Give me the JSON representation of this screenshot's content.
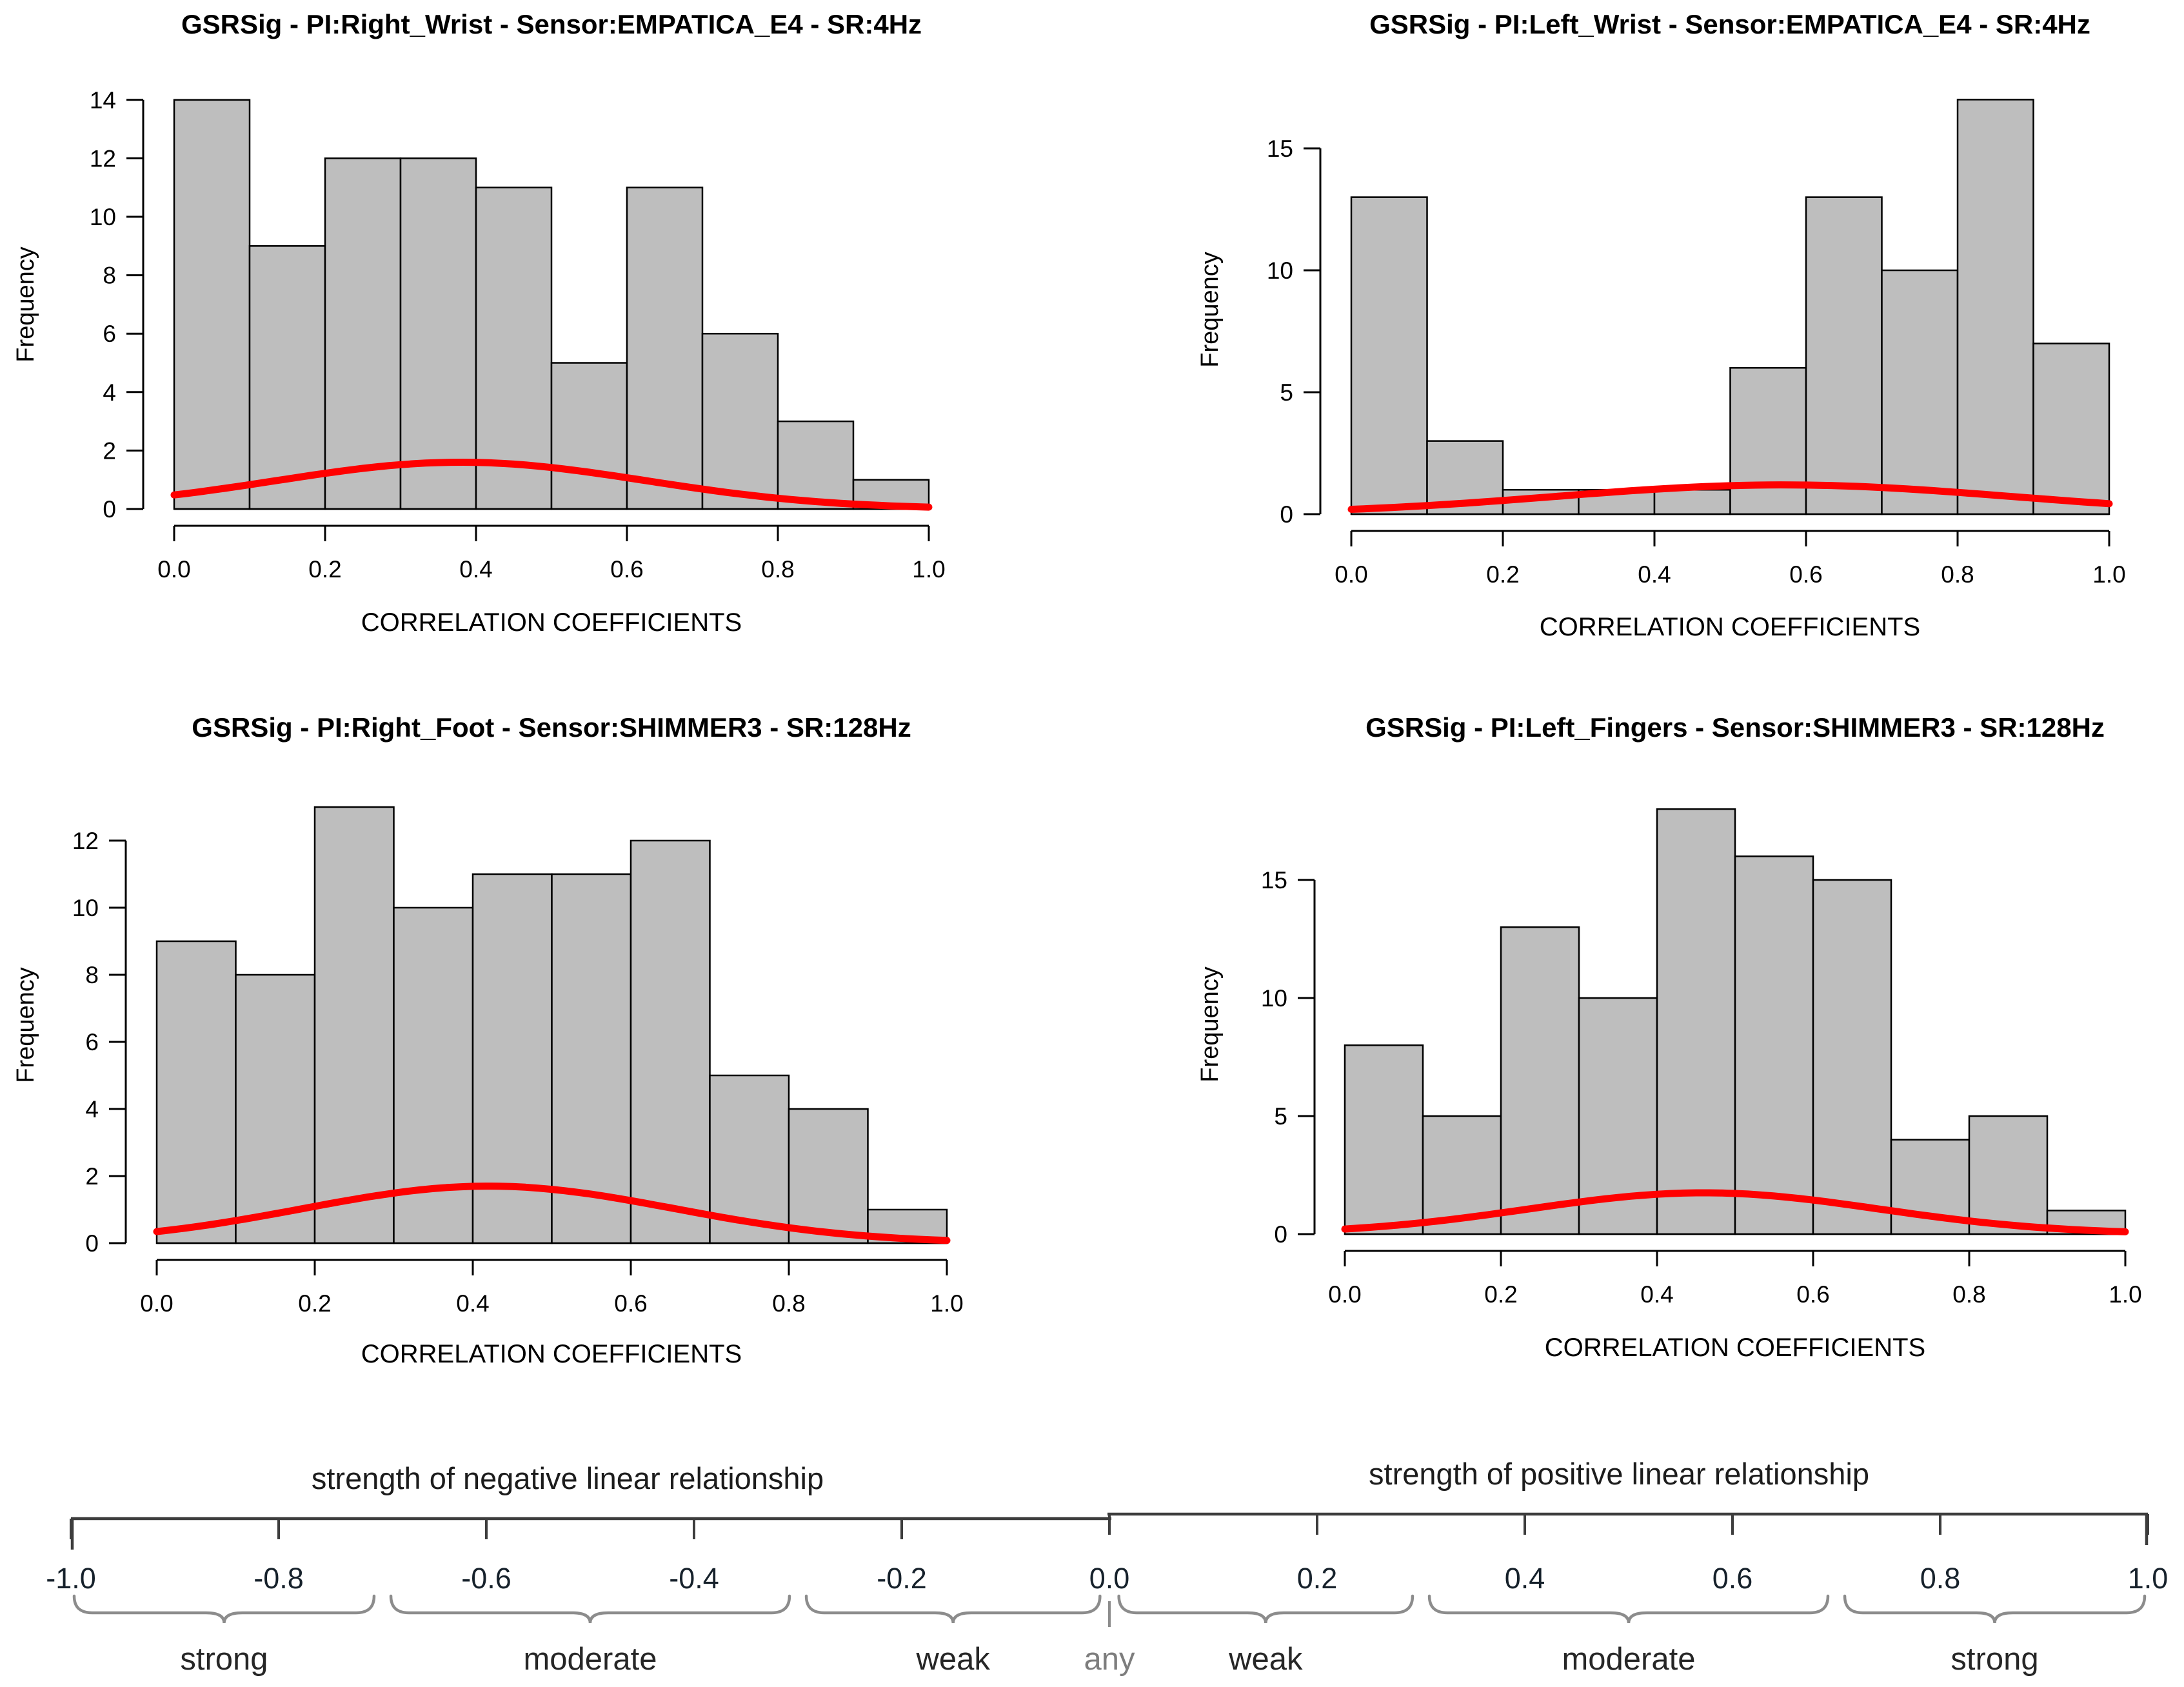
{
  "figure": {
    "background": "#ffffff",
    "bar_fill": "#bebebe",
    "bar_stroke": "#000000",
    "axis_color": "#000000",
    "curve_color": "#ff0000"
  },
  "chart_data": [
    {
      "type": "histogram",
      "position": "top-left",
      "title": "GSRSig - PI:Right_Wrist - Sensor:EMPATICA_E4 - SR:4Hz",
      "xlabel": "CORRELATION COEFFICIENTS",
      "ylabel": "Frequency",
      "xlim": [
        0.0,
        1.0
      ],
      "bin_width": 0.1,
      "bin_start": 0.0,
      "counts": [
        14,
        9,
        12,
        12,
        11,
        5,
        11,
        6,
        3,
        1
      ],
      "xticks": [
        "0.0",
        "0.2",
        "0.4",
        "0.6",
        "0.8",
        "1.0"
      ],
      "yticks": [
        0,
        2,
        4,
        6,
        8,
        10,
        12,
        14
      ],
      "grid": false,
      "legend": "none",
      "density_curve": {
        "color": "#ff0000",
        "peak_x": 0.38,
        "peak_y": 1.6,
        "sigma": 0.245
      }
    },
    {
      "type": "histogram",
      "position": "top-right",
      "title": "GSRSig - PI:Left_Wrist - Sensor:EMPATICA_E4 - SR:4Hz",
      "xlabel": "CORRELATION COEFFICIENTS",
      "ylabel": "Frequency",
      "xlim": [
        0.0,
        1.0
      ],
      "bin_width": 0.1,
      "bin_start": 0.0,
      "counts": [
        13,
        3,
        1,
        1,
        1,
        6,
        13,
        10,
        17,
        7
      ],
      "xticks": [
        "0.0",
        "0.2",
        "0.4",
        "0.6",
        "0.8",
        "1.0"
      ],
      "yticks": [
        0,
        5,
        10,
        15
      ],
      "grid": false,
      "legend": "none",
      "density_curve": {
        "color": "#ff0000",
        "peak_x": 0.57,
        "peak_y": 1.2,
        "sigma": 0.3
      }
    },
    {
      "type": "histogram",
      "position": "bottom-left",
      "title": "GSRSig - PI:Right_Foot - Sensor:SHIMMER3 - SR:128Hz",
      "xlabel": "CORRELATION COEFFICIENTS",
      "ylabel": "Frequency",
      "xlim": [
        0.0,
        1.0
      ],
      "bin_width": 0.1,
      "bin_start": 0.0,
      "counts": [
        9,
        8,
        13,
        10,
        11,
        11,
        12,
        5,
        4,
        1
      ],
      "xticks": [
        "0.0",
        "0.2",
        "0.4",
        "0.6",
        "0.8",
        "1.0"
      ],
      "yticks": [
        0,
        2,
        4,
        6,
        8,
        10,
        12
      ],
      "grid": false,
      "legend": "none",
      "density_curve": {
        "color": "#ff0000",
        "peak_x": 0.42,
        "peak_y": 1.7,
        "sigma": 0.235
      }
    },
    {
      "type": "histogram",
      "position": "bottom-right",
      "title": "GSRSig - PI:Left_Fingers - Sensor:SHIMMER3 - SR:128Hz",
      "xlabel": "CORRELATION COEFFICIENTS",
      "ylabel": "Frequency",
      "xlim": [
        0.0,
        1.0
      ],
      "bin_width": 0.1,
      "bin_start": 0.0,
      "counts": [
        8,
        5,
        13,
        10,
        18,
        16,
        15,
        4,
        5,
        1
      ],
      "xticks": [
        "0.0",
        "0.2",
        "0.4",
        "0.6",
        "0.8",
        "1.0"
      ],
      "yticks": [
        0,
        5,
        10,
        15
      ],
      "grid": false,
      "legend": "none",
      "density_curve": {
        "color": "#ff0000",
        "peak_x": 0.46,
        "peak_y": 1.75,
        "sigma": 0.225
      }
    }
  ],
  "strength_scale": {
    "left_heading": "strength of negative linear relationship",
    "right_heading": "strength of positive linear relationship",
    "axis_range": [
      -1.0,
      1.0
    ],
    "tick_step": 0.2,
    "tick_labels": [
      "-1.0",
      "-0.8",
      "-0.6",
      "-0.4",
      "-0.2",
      "0.0",
      "0.2",
      "0.4",
      "0.6",
      "0.8",
      "1.0"
    ],
    "line_color": "#3d3d3d",
    "brace_color": "#8c8c8c",
    "brackets": [
      {
        "label": "strong",
        "from": -1.0,
        "to": -0.705,
        "side": "negative"
      },
      {
        "label": "moderate",
        "from": -0.695,
        "to": -0.305,
        "side": "negative"
      },
      {
        "label": "weak",
        "from": -0.295,
        "to": -0.006,
        "side": "negative"
      },
      {
        "label": "any",
        "from": 0.0,
        "to": 0.0,
        "side": "center",
        "marker": "point"
      },
      {
        "label": "weak",
        "from": 0.006,
        "to": 0.295,
        "side": "positive"
      },
      {
        "label": "moderate",
        "from": 0.305,
        "to": 0.695,
        "side": "positive"
      },
      {
        "label": "strong",
        "from": 0.705,
        "to": 1.0,
        "side": "positive"
      }
    ]
  }
}
